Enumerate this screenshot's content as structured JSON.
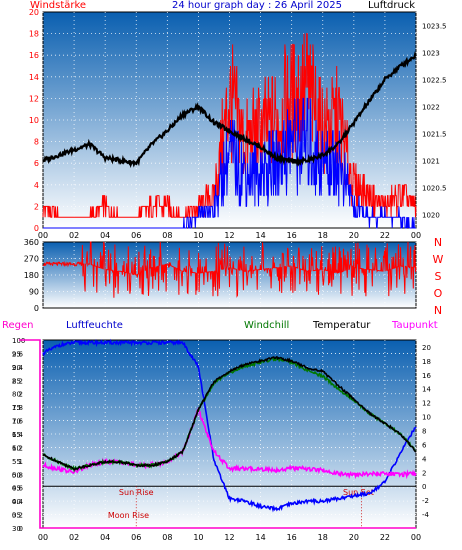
{
  "header": {
    "left_label": "Windstärke",
    "title": "24 hour graph day : 26 April 2025",
    "right_label": "Luftdruck"
  },
  "colors": {
    "wind": "#ff0000",
    "gust": "#0000ff",
    "pressure": "#000000",
    "direction": "#ff0000",
    "rain": "#ff00cc",
    "humidity": "#0000ff",
    "windchill": "#007700",
    "temperature": "#000000",
    "dewpoint": "#ff00ff",
    "plot_top": "#0a5fb0",
    "plot_bottom": "#ffffff"
  },
  "x_ticks": [
    "00",
    "02",
    "04",
    "06",
    "08",
    "10",
    "12",
    "14",
    "16",
    "18",
    "20",
    "22",
    "00"
  ],
  "chart_data": [
    {
      "type": "line",
      "name": "wind-pressure",
      "x_range": [
        0,
        24
      ],
      "y_left": {
        "label": "Windstärke",
        "ylim": [
          0,
          20
        ],
        "ticks": [
          "0",
          "2",
          "4",
          "6",
          "8",
          "10",
          "12",
          "14",
          "16",
          "18",
          "20"
        ]
      },
      "y_right": {
        "label": "Luftdruck",
        "ylim": [
          1019.75,
          1023.75
        ],
        "ticks": [
          "1020",
          "1020.5",
          "1021",
          "1021.5",
          "1022",
          "1022.5",
          "1023",
          "1023.5"
        ]
      },
      "series": [
        {
          "name": "Luftdruck",
          "axis": "right",
          "color": "#000000",
          "x": [
            0,
            1,
            2,
            3,
            4,
            5,
            6,
            7,
            8,
            9,
            10,
            11,
            12,
            13,
            14,
            15,
            16,
            17,
            18,
            19,
            20,
            21,
            22,
            23,
            24
          ],
          "y": [
            1021.0,
            1021.1,
            1021.2,
            1021.3,
            1021.05,
            1021.0,
            1020.95,
            1021.3,
            1021.55,
            1021.85,
            1022.0,
            1021.7,
            1021.55,
            1021.4,
            1021.25,
            1021.05,
            1020.98,
            1021.0,
            1021.1,
            1021.3,
            1021.7,
            1022.1,
            1022.5,
            1022.75,
            1022.95
          ]
        },
        {
          "name": "Windgeschwindigkeit",
          "axis": "left",
          "color": "#ff0000",
          "x": [
            0,
            1,
            2,
            3,
            4,
            5,
            6,
            7,
            8,
            9,
            10,
            11,
            12,
            13,
            14,
            15,
            16,
            17,
            18,
            19,
            20,
            21,
            22,
            23,
            24
          ],
          "y": [
            2,
            1,
            1,
            1,
            2,
            1,
            1,
            2,
            2,
            1,
            2,
            3,
            12,
            8,
            9,
            10,
            12,
            13,
            9,
            10,
            4,
            3,
            2,
            3,
            2
          ]
        },
        {
          "name": "Windböen",
          "axis": "left",
          "color": "#0000ff",
          "x": [
            0,
            1,
            2,
            3,
            4,
            5,
            6,
            7,
            8,
            9,
            10,
            11,
            12,
            13,
            14,
            15,
            16,
            17,
            18,
            19,
            20,
            21,
            22,
            23,
            24
          ],
          "y": [
            0,
            0,
            0,
            0,
            0,
            0,
            0,
            0,
            0,
            0,
            1,
            2,
            7,
            5,
            5,
            6,
            8,
            8,
            6,
            6,
            2,
            1,
            1,
            1,
            0
          ]
        }
      ]
    },
    {
      "type": "scatter",
      "name": "wind-direction",
      "x_range": [
        0,
        24
      ],
      "y_left": {
        "ylim": [
          0,
          360
        ],
        "ticks": [
          "0",
          "90",
          "180",
          "270",
          "360"
        ]
      },
      "y_right": {
        "ticks": [
          "N",
          "W",
          "S",
          "O",
          "N"
        ]
      },
      "series": [
        {
          "name": "Windrichtung",
          "color": "#ff0000",
          "x": [
            0,
            1,
            2,
            3,
            4,
            5,
            6,
            7,
            8,
            9,
            10,
            11,
            12,
            13,
            14,
            15,
            16,
            17,
            18,
            19,
            20,
            21,
            22,
            23,
            24
          ],
          "y": [
            240,
            240,
            240,
            240,
            210,
            200,
            180,
            220,
            240,
            200,
            190,
            200,
            220,
            200,
            210,
            220,
            230,
            200,
            210,
            190,
            220,
            210,
            200,
            230,
            220
          ]
        }
      ]
    },
    {
      "type": "line",
      "name": "temp-humidity",
      "x_range": [
        0,
        24
      ],
      "y_left_outer": {
        "label": "Regen",
        "ylim": [
          0,
          2.8
        ],
        "ticks": [
          "0",
          "0.2",
          "0.4",
          "0.6",
          "0.8",
          "1",
          "1.2",
          "1.4",
          "1.6",
          "1.8",
          "2",
          "2.2",
          "2.4",
          "2.6"
        ]
      },
      "y_left": {
        "label": "Luftfeuchte",
        "ylim": [
          30,
          100
        ],
        "ticks": [
          "30",
          "35",
          "40",
          "45",
          "50",
          "55",
          "60",
          "65",
          "70",
          "75",
          "80",
          "85",
          "90",
          "95",
          "100"
        ]
      },
      "y_right": {
        "ylim": [
          -6,
          21
        ],
        "ticks": [
          "-4",
          "-2",
          "0",
          "2",
          "4",
          "6",
          "8",
          "10",
          "12",
          "14",
          "16",
          "18",
          "20"
        ]
      },
      "legend": [
        "Windchill",
        "Temperatur",
        "Taupunkt"
      ],
      "annotations": [
        "Sun Rise",
        "Sun Set",
        "Moon Rise"
      ],
      "series": [
        {
          "name": "Luftfeuchte",
          "axis": "left",
          "color": "#0000ff",
          "x": [
            0,
            1,
            2,
            3,
            4,
            5,
            6,
            7,
            8,
            9,
            10,
            11,
            12,
            13,
            14,
            15,
            16,
            17,
            18,
            19,
            20,
            21,
            22,
            23,
            24
          ],
          "y": [
            95,
            98,
            99,
            99,
            99,
            99,
            99,
            99,
            99,
            99,
            90,
            55,
            41,
            40,
            38,
            37,
            39,
            40,
            40,
            41,
            42,
            43,
            47,
            58,
            68
          ]
        },
        {
          "name": "Temperatur",
          "axis": "right",
          "color": "#000000",
          "x": [
            0,
            1,
            2,
            3,
            4,
            5,
            6,
            7,
            8,
            9,
            10,
            11,
            12,
            13,
            14,
            15,
            16,
            17,
            18,
            19,
            20,
            21,
            22,
            23,
            24
          ],
          "y": [
            4.5,
            3.5,
            2.5,
            3.0,
            3.5,
            3.5,
            3.0,
            3.0,
            3.5,
            5.0,
            11.0,
            15.0,
            16.5,
            17.5,
            18.0,
            18.5,
            18.0,
            17.0,
            16.5,
            14.5,
            12.5,
            10.5,
            9.0,
            7.5,
            5.0
          ]
        },
        {
          "name": "Windchill",
          "axis": "right",
          "color": "#007700",
          "x": [
            0,
            1,
            2,
            3,
            4,
            5,
            6,
            7,
            8,
            9,
            10,
            11,
            12,
            13,
            14,
            15,
            16,
            17,
            18,
            19,
            20,
            21,
            22,
            23,
            24
          ],
          "y": [
            4.5,
            3.5,
            2.5,
            3.0,
            3.5,
            3.5,
            3.0,
            3.0,
            3.5,
            5.0,
            11.0,
            14.8,
            16.3,
            17.3,
            17.8,
            18.3,
            17.8,
            16.6,
            15.8,
            14.0,
            12.3,
            10.5,
            9.0,
            7.5,
            5.0
          ]
        },
        {
          "name": "Taupunkt",
          "axis": "right",
          "color": "#ff00ff",
          "x": [
            0,
            1,
            2,
            3,
            4,
            5,
            6,
            7,
            8,
            9,
            10,
            11,
            12,
            13,
            14,
            15,
            16,
            17,
            18,
            19,
            20,
            21,
            22,
            23,
            24
          ],
          "y": [
            3.0,
            2.5,
            2.0,
            3.0,
            3.5,
            3.5,
            3.0,
            3.0,
            3.5,
            5.0,
            11.0,
            5.0,
            2.5,
            2.5,
            2.5,
            2.3,
            2.6,
            2.5,
            2.3,
            1.8,
            1.6,
            1.8,
            1.8,
            1.7,
            1.8
          ]
        },
        {
          "name": "Regen",
          "axis": "left_outer",
          "color": "#ff00cc",
          "x": [
            0,
            0.1,
            24
          ],
          "y": [
            2.8,
            0,
            0
          ]
        }
      ]
    }
  ],
  "rain_top_label": "2.6"
}
